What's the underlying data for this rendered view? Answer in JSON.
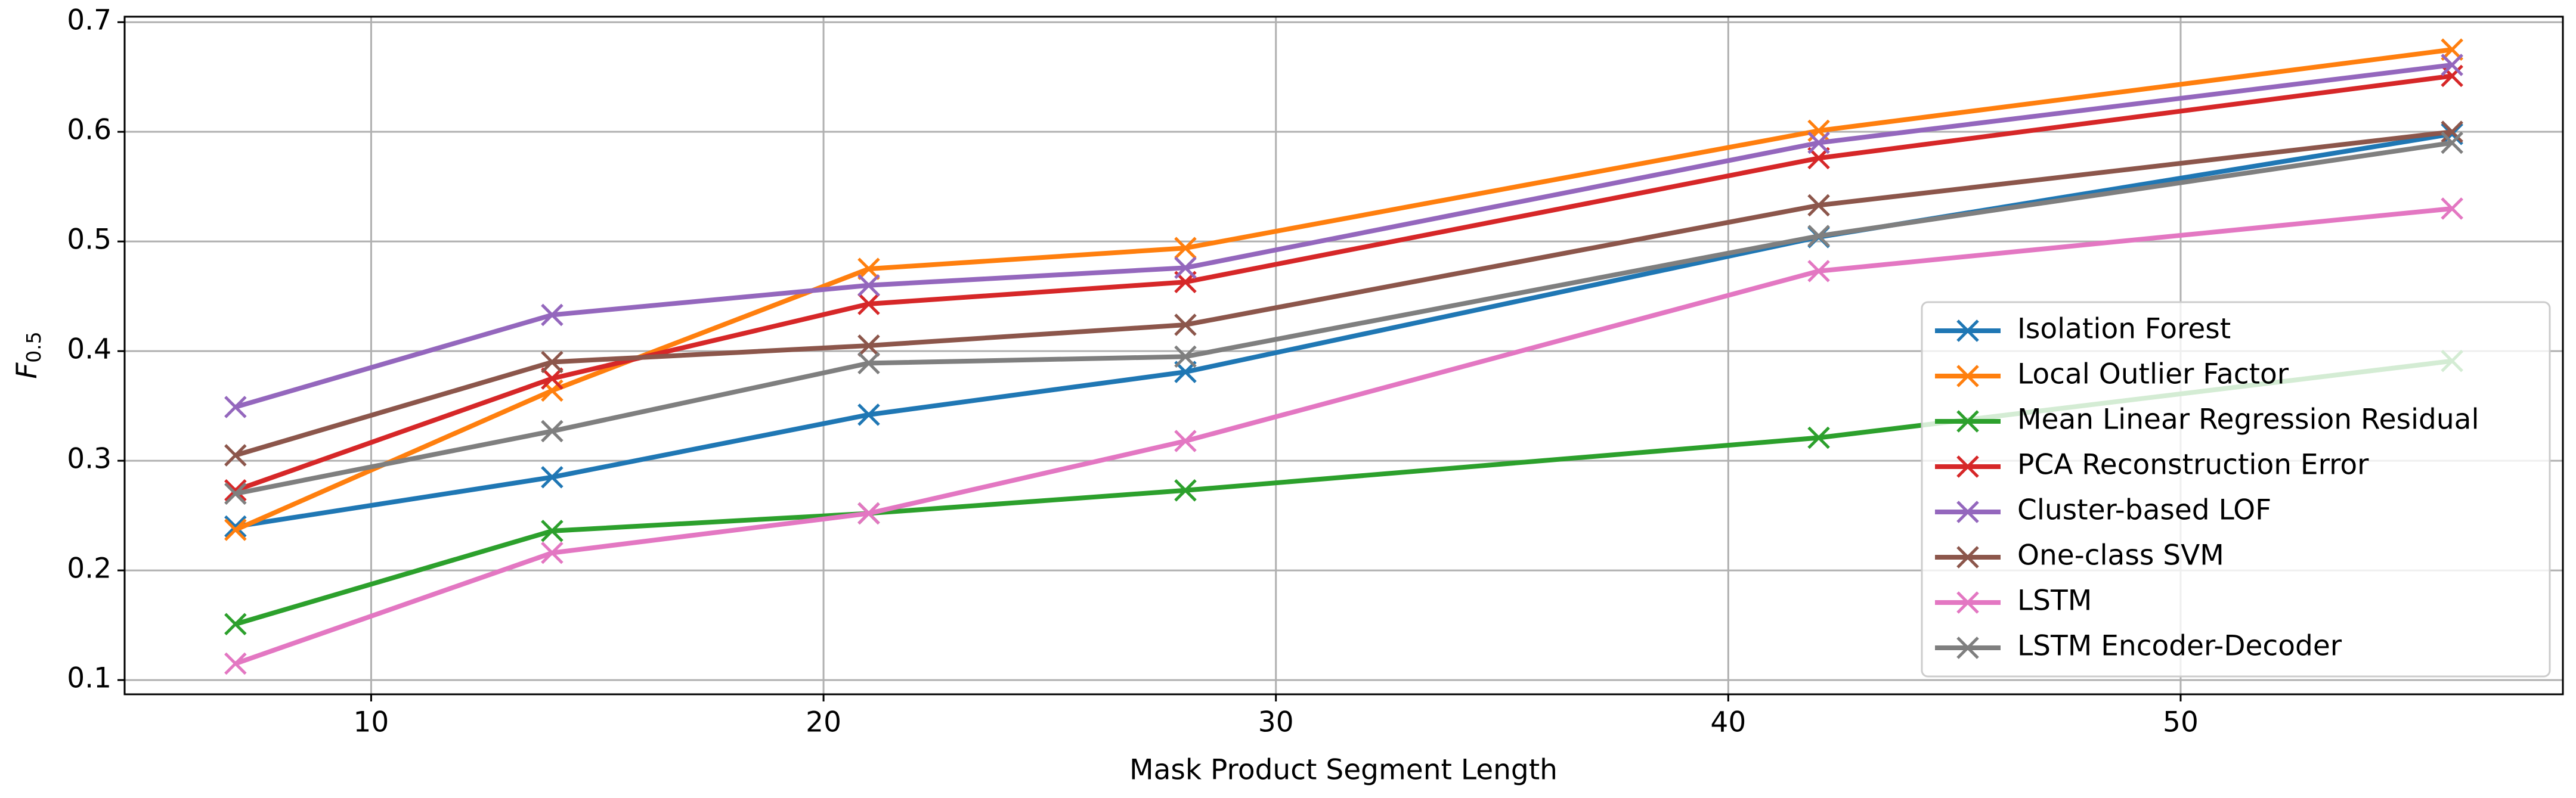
{
  "chart_data": {
    "type": "line",
    "xlabel": "Mask Product Segment Length",
    "ylabel": {
      "base": "F",
      "subscript": "0.5"
    },
    "x": [
      7,
      14,
      21,
      28,
      42,
      56
    ],
    "series": [
      {
        "name": "Isolation Forest",
        "color": "#1f77b4",
        "values": [
          0.24,
          0.285,
          0.342,
          0.381,
          0.504,
          0.598
        ]
      },
      {
        "name": "Local Outlier Factor",
        "color": "#ff7f0e",
        "values": [
          0.237,
          0.364,
          0.475,
          0.494,
          0.601,
          0.675
        ]
      },
      {
        "name": "Mean Linear Regression Residual",
        "color": "#2ca02c",
        "values": [
          0.151,
          0.236,
          0.252,
          0.273,
          0.321,
          0.391
        ]
      },
      {
        "name": "PCA Reconstruction Error",
        "color": "#d62728",
        "values": [
          0.273,
          0.375,
          0.443,
          0.463,
          0.576,
          0.651
        ]
      },
      {
        "name": "Cluster-based LOF",
        "color": "#9467bd",
        "values": [
          0.349,
          0.433,
          0.46,
          0.476,
          0.59,
          0.661
        ]
      },
      {
        "name": "One-class SVM",
        "color": "#8c564b",
        "values": [
          0.305,
          0.39,
          0.405,
          0.424,
          0.533,
          0.6
        ]
      },
      {
        "name": "LSTM",
        "color": "#e377c2",
        "values": [
          0.115,
          0.216,
          0.252,
          0.318,
          0.473,
          0.53
        ]
      },
      {
        "name": "LSTM Encoder-Decoder",
        "color": "#7f7f7f",
        "values": [
          0.27,
          0.327,
          0.389,
          0.395,
          0.505,
          0.59
        ]
      }
    ],
    "xlim": [
      4.55,
      58.45
    ],
    "xticks": [
      10,
      20,
      30,
      40,
      50
    ],
    "ylim": [
      0.087,
      0.705
    ],
    "yticks": [
      0.1,
      0.2,
      0.3,
      0.4,
      0.5,
      0.6,
      0.7
    ],
    "grid": true,
    "legend": "lower right",
    "marker": "x"
  }
}
